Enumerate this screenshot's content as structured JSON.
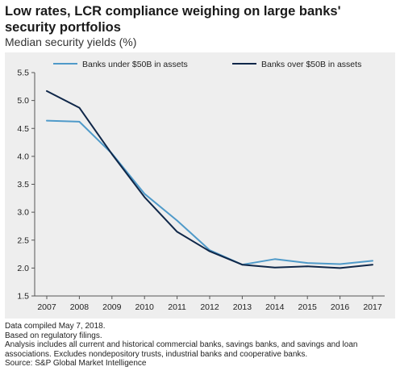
{
  "title": "Low rates, LCR compliance weighing on large banks' security portfolios",
  "subtitle": "Median security yields (%)",
  "colors": {
    "background": "#eeeeee",
    "series_light": "#4f9ac9",
    "series_dark": "#0f2749"
  },
  "chart_data": {
    "type": "line",
    "title": "Low rates, LCR compliance weighing on large banks' security portfolios",
    "subtitle": "Median security yields (%)",
    "x": [
      "2007",
      "2008",
      "2009",
      "2010",
      "2011",
      "2012",
      "2013",
      "2014",
      "2015",
      "2016",
      "2017"
    ],
    "series": [
      {
        "name": "Banks under $50B in assets",
        "color": "#4f9ac9",
        "values": [
          4.64,
          4.62,
          4.05,
          3.33,
          2.85,
          2.32,
          2.06,
          2.16,
          2.09,
          2.07,
          2.13
        ]
      },
      {
        "name": "Banks over $50B in assets",
        "color": "#0f2749",
        "values": [
          5.17,
          4.87,
          4.04,
          3.27,
          2.65,
          2.3,
          2.06,
          2.01,
          2.03,
          2.0,
          2.06
        ]
      }
    ],
    "yticks": [
      "1.5",
      "2.0",
      "2.5",
      "3.0",
      "3.5",
      "4.0",
      "4.5",
      "5.0",
      "5.5"
    ],
    "ylim": [
      1.5,
      5.5
    ],
    "grid": false,
    "legend": "top"
  },
  "notes": [
    "Data compiled May 7, 2018.",
    "Based on regulatory filings.",
    "Analysis includes all current and historical commercial banks, savings banks, and savings and loan",
    "associations. Excludes nondepository trusts, industrial banks and cooperative banks.",
    "Source: S&P Global Market Intelligence"
  ]
}
